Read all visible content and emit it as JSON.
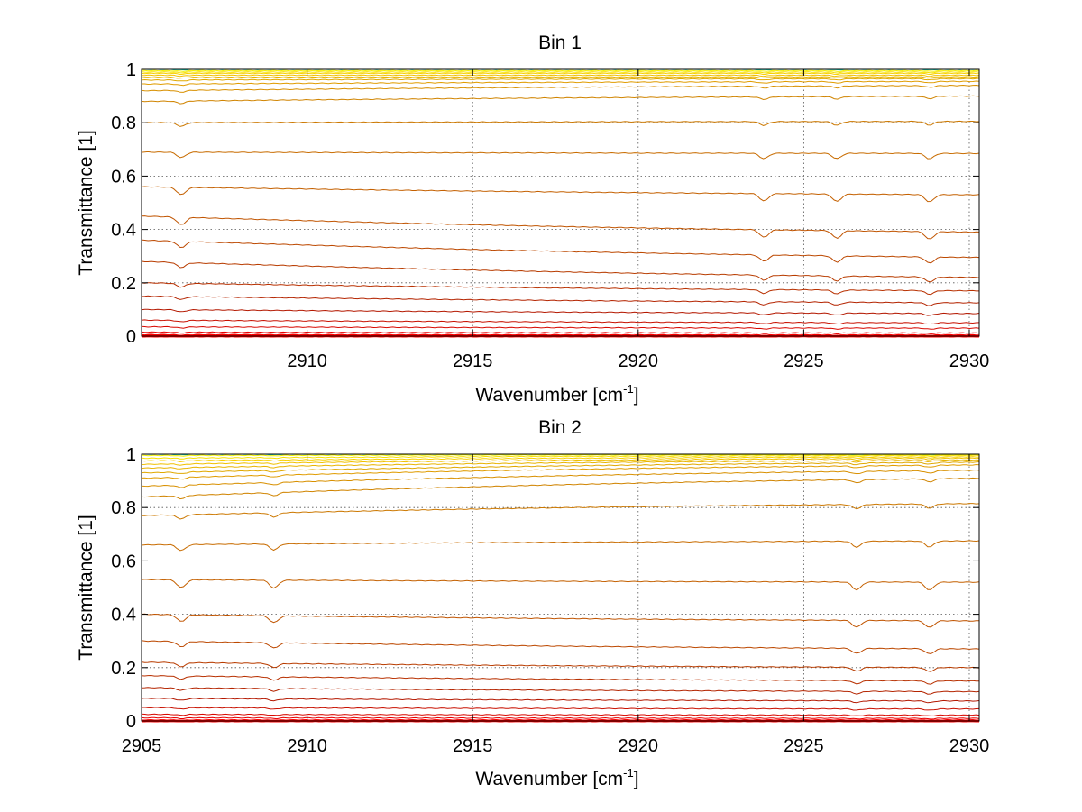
{
  "chart_data": [
    {
      "type": "line",
      "title": "Bin 1",
      "xlabel": "Wavenumber [cm",
      "xlabel_exponent": "-1",
      "xlabel_suffix": "]",
      "ylabel": "Transmittance [1]",
      "xlim": [
        2905,
        2930.3
      ],
      "ylim": [
        0,
        1
      ],
      "xticks": [
        2910,
        2915,
        2920,
        2925,
        2930
      ],
      "xtick_labels": [
        "2910",
        "2915",
        "2920",
        "2925",
        "2930"
      ],
      "yticks": [
        0,
        0.2,
        0.4,
        0.6,
        0.8,
        1
      ],
      "ytick_labels": [
        "0",
        "0.2",
        "0.4",
        "0.6",
        "0.8",
        "1"
      ],
      "grid": true,
      "dips": [
        2906.2,
        2923.8,
        2926.0,
        2928.8
      ],
      "series": [
        {
          "values": [
            1.0,
            1.0
          ],
          "color": "#20d8c0"
        },
        {
          "values": [
            0.995,
            0.995
          ],
          "color": "#f0f000"
        },
        {
          "values": [
            0.99,
            0.99
          ],
          "color": "#f8e000"
        },
        {
          "values": [
            0.985,
            0.985
          ],
          "color": "#f8d000"
        },
        {
          "values": [
            0.978,
            0.978
          ],
          "color": "#f0c000"
        },
        {
          "values": [
            0.97,
            0.972
          ],
          "color": "#e8b400"
        },
        {
          "values": [
            0.96,
            0.965
          ],
          "color": "#e0a800"
        },
        {
          "values": [
            0.945,
            0.955
          ],
          "color": "#e09c00"
        },
        {
          "values": [
            0.92,
            0.94
          ],
          "color": "#d89000"
        },
        {
          "values": [
            0.88,
            0.9
          ],
          "color": "#d08400"
        },
        {
          "values": [
            0.8,
            0.805
          ],
          "color": "#cc7800"
        },
        {
          "values": [
            0.69,
            0.685
          ],
          "color": "#c86c00"
        },
        {
          "values": [
            0.56,
            0.53
          ],
          "color": "#c46000"
        },
        {
          "values": [
            0.45,
            0.39
          ],
          "color": "#c05400"
        },
        {
          "values": [
            0.36,
            0.295
          ],
          "color": "#bc4800"
        },
        {
          "values": [
            0.28,
            0.22
          ],
          "color": "#b83c00"
        },
        {
          "values": [
            0.2,
            0.17
          ],
          "color": "#b83000"
        },
        {
          "values": [
            0.15,
            0.125
          ],
          "color": "#b42400"
        },
        {
          "values": [
            0.1,
            0.085
          ],
          "color": "#b41800"
        },
        {
          "values": [
            0.06,
            0.05
          ],
          "color": "#c81000"
        },
        {
          "values": [
            0.035,
            0.03
          ],
          "color": "#d80800"
        },
        {
          "values": [
            0.015,
            0.012
          ],
          "color": "#e80000"
        },
        {
          "values": [
            0.006,
            0.005
          ],
          "color": "#f00000"
        },
        {
          "values": [
            0.0,
            0.0
          ],
          "color": "#ff0000"
        }
      ]
    },
    {
      "type": "line",
      "title": "Bin 2",
      "xlabel": "Wavenumber [cm",
      "xlabel_exponent": "-1",
      "xlabel_suffix": "]",
      "ylabel": "Transmittance [1]",
      "xlim": [
        2905,
        2930.3
      ],
      "ylim": [
        0,
        1
      ],
      "xticks": [
        2905,
        2910,
        2915,
        2920,
        2925,
        2930
      ],
      "xtick_labels": [
        "2905",
        "2910",
        "2915",
        "2920",
        "2925",
        "2930"
      ],
      "yticks": [
        0,
        0.2,
        0.4,
        0.6,
        0.8,
        1
      ],
      "ytick_labels": [
        "0",
        "0.2",
        "0.4",
        "0.6",
        "0.8",
        "1"
      ],
      "grid": true,
      "dips": [
        2906.2,
        2909.0,
        2926.6,
        2928.8
      ],
      "series": [
        {
          "values": [
            1.0,
            1.0
          ],
          "color": "#20d8c0"
        },
        {
          "values": [
            0.995,
            0.998
          ],
          "color": "#f0f000"
        },
        {
          "values": [
            0.985,
            0.995
          ],
          "color": "#f8e000"
        },
        {
          "values": [
            0.975,
            0.99
          ],
          "color": "#f8d000"
        },
        {
          "values": [
            0.962,
            0.985
          ],
          "color": "#f0c000"
        },
        {
          "values": [
            0.948,
            0.978
          ],
          "color": "#e8b400"
        },
        {
          "values": [
            0.93,
            0.97
          ],
          "color": "#e0a800"
        },
        {
          "values": [
            0.91,
            0.96
          ],
          "color": "#e09c00"
        },
        {
          "values": [
            0.88,
            0.94
          ],
          "color": "#d89000"
        },
        {
          "values": [
            0.84,
            0.91
          ],
          "color": "#d08400"
        },
        {
          "values": [
            0.77,
            0.815
          ],
          "color": "#cc7800"
        },
        {
          "values": [
            0.66,
            0.675
          ],
          "color": "#c86c00"
        },
        {
          "values": [
            0.53,
            0.52
          ],
          "color": "#c46000"
        },
        {
          "values": [
            0.4,
            0.375
          ],
          "color": "#c05400"
        },
        {
          "values": [
            0.3,
            0.27
          ],
          "color": "#bc4800"
        },
        {
          "values": [
            0.22,
            0.2
          ],
          "color": "#b83c00"
        },
        {
          "values": [
            0.17,
            0.15
          ],
          "color": "#b83000"
        },
        {
          "values": [
            0.125,
            0.11
          ],
          "color": "#b42400"
        },
        {
          "values": [
            0.085,
            0.075
          ],
          "color": "#b41800"
        },
        {
          "values": [
            0.05,
            0.045
          ],
          "color": "#c81000"
        },
        {
          "values": [
            0.025,
            0.022
          ],
          "color": "#d80800"
        },
        {
          "values": [
            0.012,
            0.01
          ],
          "color": "#e80000"
        },
        {
          "values": [
            0.004,
            0.004
          ],
          "color": "#f00000"
        },
        {
          "values": [
            0.0,
            0.0
          ],
          "color": "#ff0000"
        }
      ]
    }
  ]
}
